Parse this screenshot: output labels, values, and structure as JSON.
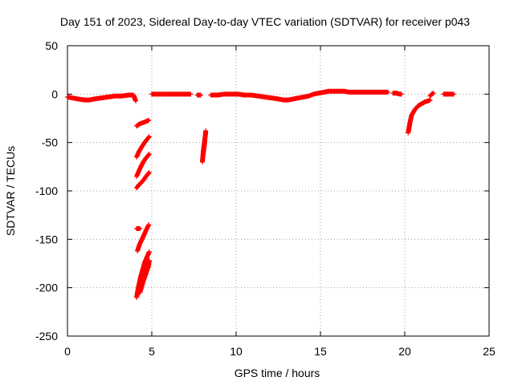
{
  "chart_data": {
    "type": "scatter",
    "title": "Day 151 of 2023, Sidereal Day-to-day VTEC variation (SDTVAR) for receiver p043",
    "xlabel": "GPS time / hours",
    "ylabel": "SDTVAR / TECUs",
    "xlim": [
      0,
      25
    ],
    "ylim": [
      -250,
      50
    ],
    "grid": true,
    "marker": "plus",
    "color": "#ff0000",
    "xticks": [
      0,
      5,
      10,
      15,
      20,
      25
    ],
    "yticks": [
      50,
      0,
      -50,
      -100,
      -150,
      -200,
      -250
    ],
    "xtick_labels": [
      "0",
      "5",
      "10",
      "15",
      "20",
      "25"
    ],
    "ytick_labels": [
      "50",
      "0",
      "-50",
      "-100",
      "-150",
      "-200",
      "-250"
    ],
    "series": [
      {
        "name": "SDTVAR",
        "segments": [
          {
            "x": [
              0.0,
              0.3,
              0.6,
              1.0,
              1.3,
              1.6,
              2.0,
              2.4,
              2.8,
              3.2,
              3.6,
              3.9
            ],
            "y": [
              -3,
              -4,
              -5,
              -6,
              -6,
              -5,
              -4,
              -3,
              -2,
              -2,
              -1,
              -1
            ]
          },
          {
            "x": [
              3.95,
              4.0,
              4.05
            ],
            "y": [
              -2,
              -5,
              -7
            ]
          },
          {
            "x": [
              4.1,
              4.25,
              4.4,
              4.55,
              4.7,
              4.82
            ],
            "y": [
              -33,
              -31,
              -30,
              -29,
              -28,
              -27
            ]
          },
          {
            "x": [
              4.1,
              4.22,
              4.35,
              4.5,
              4.62,
              4.75,
              4.85
            ],
            "y": [
              -65,
              -60,
              -56,
              -52,
              -49,
              -46,
              -44
            ]
          },
          {
            "x": [
              4.1,
              4.22,
              4.35,
              4.5,
              4.62,
              4.75,
              4.85
            ],
            "y": [
              -85,
              -80,
              -75,
              -70,
              -67,
              -64,
              -62
            ]
          },
          {
            "x": [
              4.1,
              4.22,
              4.35,
              4.5,
              4.62,
              4.75,
              4.85
            ],
            "y": [
              -97,
              -94,
              -92,
              -89,
              -86,
              -83,
              -81
            ]
          },
          {
            "x": [
              4.1,
              4.2,
              4.3
            ],
            "y": [
              -139,
              -139,
              -139
            ]
          },
          {
            "x": [
              4.15,
              4.28,
              4.42,
              4.55,
              4.68,
              4.82
            ],
            "y": [
              -162,
              -155,
              -150,
              -145,
              -140,
              -135
            ]
          },
          {
            "x": [
              4.1,
              4.15,
              4.2,
              4.25,
              4.3,
              4.35,
              4.4,
              4.45,
              4.5,
              4.55,
              4.6,
              4.65,
              4.7,
              4.75,
              4.8,
              4.85
            ],
            "y": [
              -210,
              -205,
              -200,
              -196,
              -192,
              -188,
              -185,
              -182,
              -179,
              -176,
              -173,
              -171,
              -169,
              -167,
              -165,
              -163
            ]
          },
          {
            "x": [
              4.3,
              4.4,
              4.5,
              4.6,
              4.7,
              4.8,
              4.85
            ],
            "y": [
              -205,
              -199,
              -193,
              -188,
              -183,
              -178,
              -172
            ]
          },
          {
            "x": [
              5.0,
              5.4,
              5.8,
              6.2,
              6.6,
              7.0,
              7.3
            ],
            "y": [
              0,
              0,
              0,
              0,
              0,
              0,
              0
            ]
          },
          {
            "x": [
              7.7,
              7.8,
              7.9
            ],
            "y": [
              -1,
              -1,
              -1
            ]
          },
          {
            "x": [
              8.0,
              8.03,
              8.06,
              8.09,
              8.12,
              8.15,
              8.18,
              8.2
            ],
            "y": [
              -70,
              -64,
              -58,
              -54,
              -50,
              -46,
              -42,
              -38
            ]
          },
          {
            "x": [
              8.05,
              8.1,
              8.15
            ],
            "y": [
              -62,
              -55,
              -48
            ]
          },
          {
            "x": [
              8.5,
              8.9,
              9.3,
              9.7,
              10.1,
              10.5,
              10.9,
              11.3,
              11.7,
              12.1,
              12.5,
              12.8,
              13.1,
              13.4,
              13.7,
              14.0,
              14.3,
              14.6,
              14.9,
              15.2,
              15.5,
              15.8,
              16.1,
              16.4,
              16.7,
              17.0,
              17.3,
              17.6,
              17.9,
              18.2,
              18.5,
              18.8,
              19.0
            ],
            "y": [
              -1,
              -1,
              0,
              0,
              0,
              -1,
              -1,
              -2,
              -3,
              -4,
              -5,
              -6,
              -6,
              -5,
              -4,
              -3,
              -2,
              0,
              1,
              2,
              3,
              3,
              3,
              3,
              2,
              2,
              2,
              2,
              2,
              2,
              2,
              2,
              2
            ]
          },
          {
            "x": [
              19.3,
              19.5,
              19.7,
              19.8
            ],
            "y": [
              1,
              1,
              0,
              0
            ]
          },
          {
            "x": [
              20.2,
              20.25,
              20.3,
              20.35,
              20.4,
              20.5,
              20.6,
              20.7,
              20.8,
              20.9,
              21.0,
              21.2,
              21.4,
              21.5
            ],
            "y": [
              -40,
              -35,
              -30,
              -26,
              -22,
              -19,
              -16,
              -14,
              -12,
              -11,
              -10,
              -8,
              -7,
              -6
            ]
          },
          {
            "x": [
              21.5,
              21.6,
              21.7
            ],
            "y": [
              -2,
              0,
              1
            ]
          },
          {
            "x": [
              22.3,
              22.5,
              22.7,
              22.9
            ],
            "y": [
              0,
              0,
              0,
              0
            ]
          }
        ]
      }
    ]
  }
}
